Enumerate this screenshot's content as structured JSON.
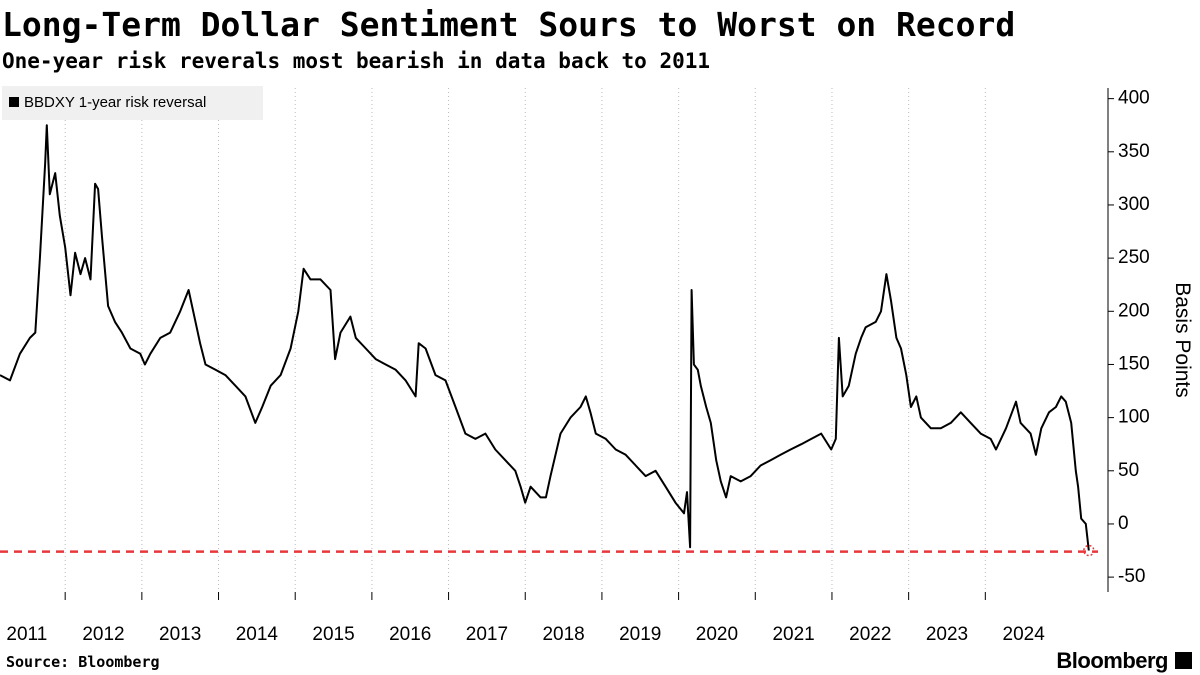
{
  "chart_data": {
    "type": "line",
    "title": "Long-Term Dollar Sentiment Sours to Worst on Record",
    "subtitle": "One-year risk reverals most bearish in data back to 2011",
    "y_axis_label": "Basis Points",
    "source": "Source: Bloomberg",
    "brand": "Bloomberg",
    "x": [
      2011.15,
      2011.28,
      2011.41,
      2011.54,
      2011.61,
      2011.67,
      2011.74,
      2011.76,
      2011.8,
      2011.87,
      2011.93,
      2012.0,
      2012.07,
      2012.13,
      2012.2,
      2012.26,
      2012.33,
      2012.39,
      2012.43,
      2012.48,
      2012.56,
      2012.65,
      2012.74,
      2012.85,
      2012.98,
      2013.04,
      2013.11,
      2013.24,
      2013.37,
      2013.5,
      2013.61,
      2013.7,
      2013.76,
      2013.83,
      2013.96,
      2014.09,
      2014.22,
      2014.35,
      2014.48,
      2014.57,
      2014.68,
      2014.81,
      2014.94,
      2015.04,
      2015.11,
      2015.2,
      2015.33,
      2015.46,
      2015.52,
      2015.59,
      2015.72,
      2015.79,
      2015.92,
      2016.05,
      2016.18,
      2016.31,
      2016.44,
      2016.57,
      2016.61,
      2016.7,
      2016.83,
      2016.96,
      2017.09,
      2017.22,
      2017.35,
      2017.48,
      2017.61,
      2017.74,
      2017.87,
      2017.94,
      2018.0,
      2018.07,
      2018.2,
      2018.27,
      2018.33,
      2018.46,
      2018.59,
      2018.72,
      2018.79,
      2018.85,
      2018.92,
      2019.05,
      2019.18,
      2019.31,
      2019.44,
      2019.57,
      2019.7,
      2019.83,
      2019.96,
      2020.07,
      2020.11,
      2020.15,
      2020.17,
      2020.2,
      2020.25,
      2020.29,
      2020.36,
      2020.42,
      2020.49,
      2020.55,
      2020.62,
      2020.68,
      2020.81,
      2020.94,
      2021.07,
      2021.2,
      2021.33,
      2021.46,
      2021.6,
      2021.73,
      2021.86,
      2021.99,
      2022.05,
      2022.09,
      2022.14,
      2022.22,
      2022.31,
      2022.38,
      2022.44,
      2022.57,
      2022.64,
      2022.71,
      2022.77,
      2022.84,
      2022.9,
      2022.97,
      2023.03,
      2023.1,
      2023.16,
      2023.29,
      2023.42,
      2023.55,
      2023.68,
      2023.81,
      2023.94,
      2024.07,
      2024.14,
      2024.27,
      2024.4,
      2024.46,
      2024.59,
      2024.66,
      2024.73,
      2024.83,
      2024.92,
      2024.99,
      2025.05,
      2025.12,
      2025.18,
      2025.21,
      2025.25,
      2025.31,
      2025.35
    ],
    "series": [
      {
        "name": "BBDXY 1-year risk reversal",
        "color": "#000000",
        "values": [
          140,
          135,
          160,
          175,
          180,
          250,
          340,
          375,
          310,
          330,
          290,
          260,
          215,
          255,
          235,
          250,
          230,
          320,
          315,
          270,
          205,
          190,
          180,
          165,
          160,
          150,
          160,
          175,
          180,
          200,
          220,
          190,
          170,
          150,
          145,
          140,
          130,
          120,
          95,
          110,
          130,
          140,
          165,
          200,
          240,
          230,
          230,
          220,
          155,
          180,
          195,
          175,
          165,
          155,
          150,
          145,
          135,
          120,
          170,
          165,
          140,
          135,
          110,
          85,
          80,
          85,
          70,
          60,
          50,
          35,
          20,
          35,
          25,
          25,
          45,
          85,
          100,
          110,
          120,
          105,
          85,
          80,
          70,
          65,
          55,
          45,
          50,
          35,
          20,
          10,
          30,
          -22,
          220,
          150,
          145,
          130,
          110,
          95,
          60,
          40,
          25,
          45,
          40,
          45,
          55,
          60,
          65,
          70,
          75,
          80,
          85,
          70,
          80,
          175,
          120,
          130,
          160,
          175,
          185,
          190,
          200,
          235,
          210,
          175,
          165,
          140,
          110,
          120,
          100,
          90,
          90,
          95,
          105,
          95,
          85,
          80,
          70,
          90,
          115,
          95,
          85,
          65,
          90,
          105,
          110,
          120,
          115,
          95,
          50,
          35,
          5,
          0,
          -25
        ]
      }
    ],
    "xlim": [
      2011.15,
      2025.6
    ],
    "ylim": [
      -64,
      410
    ],
    "yticks": [
      -50,
      0,
      50,
      100,
      150,
      200,
      250,
      300,
      350,
      400
    ],
    "xticks": [
      {
        "value": 2011,
        "label": "2011"
      },
      {
        "value": 2012,
        "label": "2012"
      },
      {
        "value": 2013,
        "label": "2013"
      },
      {
        "value": 2014,
        "label": "2014"
      },
      {
        "value": 2015,
        "label": "2015"
      },
      {
        "value": 2016,
        "label": "2016"
      },
      {
        "value": 2017,
        "label": "2017"
      },
      {
        "value": 2018,
        "label": "2018"
      },
      {
        "value": 2019,
        "label": "2019"
      },
      {
        "value": 2020,
        "label": "2020"
      },
      {
        "value": 2021,
        "label": "2021"
      },
      {
        "value": 2022,
        "label": "2022"
      },
      {
        "value": 2023,
        "label": "2023"
      },
      {
        "value": 2024,
        "label": "2024"
      }
    ],
    "reference_line": {
      "value": -26,
      "color": "#e8383d"
    },
    "grid": true,
    "legend": "top-left"
  }
}
